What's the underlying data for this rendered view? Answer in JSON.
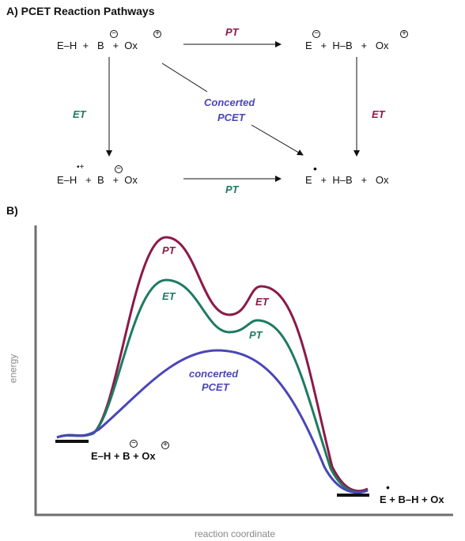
{
  "partA": {
    "title": "A) PCET Reaction Pathways",
    "top_left": "E–H  +  B  +  Ox",
    "top_right": "E  +  H–B  +  Ox",
    "bottom_left": "E–H  +  B  +  Ox",
    "bottom_right": "E  +  H–B  +  Ox",
    "label_pt_top": "PT",
    "label_pt_bottom": "PT",
    "label_et_left": "ET",
    "label_et_right": "ET",
    "label_concerted_1": "Concerted",
    "label_concerted_2": "PCET",
    "sign_minus": "−",
    "sign_plus": "+",
    "radical_plus": "•+",
    "radical_dot": "•"
  },
  "partB": {
    "title": "B)",
    "y_axis_label": "energy",
    "x_axis_label": "reaction coordinate",
    "curve_pt": "PT",
    "curve_et_1": "ET",
    "curve_et_2": "ET",
    "curve_pt_2": "PT",
    "curve_concerted_1": "concerted",
    "curve_concerted_2": "PCET",
    "reactants": "E–H + B + Ox",
    "products": "E + B–H + Ox"
  },
  "colors": {
    "stepwise_pt_first": "#8b1a4a",
    "stepwise_et_first": "#1f7a62",
    "concerted": "#4a46b8",
    "axis": "#6e6e6e"
  }
}
